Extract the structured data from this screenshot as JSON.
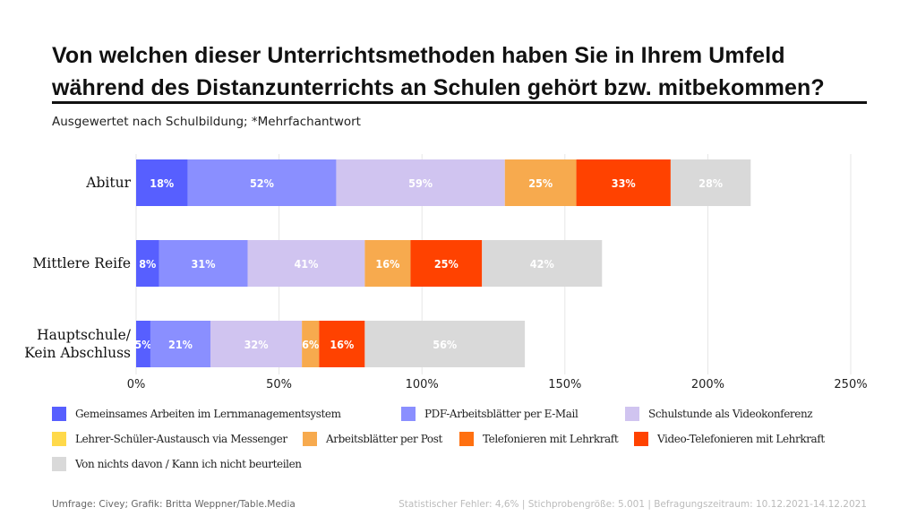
{
  "title_line1": "Von welchen dieser Unterrichtsmethoden haben Sie in Ihrem Umfeld",
  "title_line2": "während des Distanzunterrichts an Schulen gehört bzw. mitbekommen?",
  "subtitle": "Ausgewertet nach Schulbildung; *Mehrfachantwort",
  "footer_left": "Umfrage: Civey; Grafik: Britta Weppner/Table.Media",
  "footer_right": "Statistischer Fehler: 4,6% | Stichprobengröße: 5.001 | Befragungszeitraum: 10.12.2021-14.12.2021",
  "chart_data": {
    "type": "bar",
    "orientation": "horizontal",
    "stacked": true,
    "categories": [
      "Abitur",
      "Mittlere Reife",
      "Hauptschule/\nKein Abschluss"
    ],
    "xlim": [
      0,
      250
    ],
    "xticks": [
      0,
      50,
      100,
      150,
      200,
      250
    ],
    "xtick_labels": [
      "0%",
      "50%",
      "100%",
      "150%",
      "200%",
      "250%"
    ],
    "grid": true,
    "legend_position": "bottom",
    "series": [
      {
        "name": "Gemeinsames Arbeiten im Lernmanagementsystem",
        "color": "#575fff",
        "values": [
          18,
          8,
          5
        ]
      },
      {
        "name": "PDF-Arbeitsblätter per E-Mail",
        "color": "#8a8fff",
        "values": [
          52,
          31,
          21
        ]
      },
      {
        "name": "Schulstunde als Videokonferenz",
        "color": "#d0c4f0",
        "values": [
          59,
          41,
          32
        ]
      },
      {
        "name": "Lehrer-Schüler-Austausch via Messenger",
        "color": "#ffd94a",
        "values": [
          0,
          0,
          0
        ]
      },
      {
        "name": "Arbeitsblätter per Post",
        "color": "#f7aa4e",
        "values": [
          25,
          16,
          6
        ]
      },
      {
        "name": "Telefonieren mit Lehrkraft",
        "color": "#ff7010",
        "values": [
          0,
          0,
          0
        ]
      },
      {
        "name": "Video-Telefonieren mit Lehrkraft",
        "color": "#ff4200",
        "values": [
          33,
          25,
          16
        ]
      },
      {
        "name": "Von nichts davon / Kann ich nicht beurteilen",
        "color": "#d9d9d9",
        "values": [
          28,
          42,
          56
        ]
      }
    ]
  }
}
